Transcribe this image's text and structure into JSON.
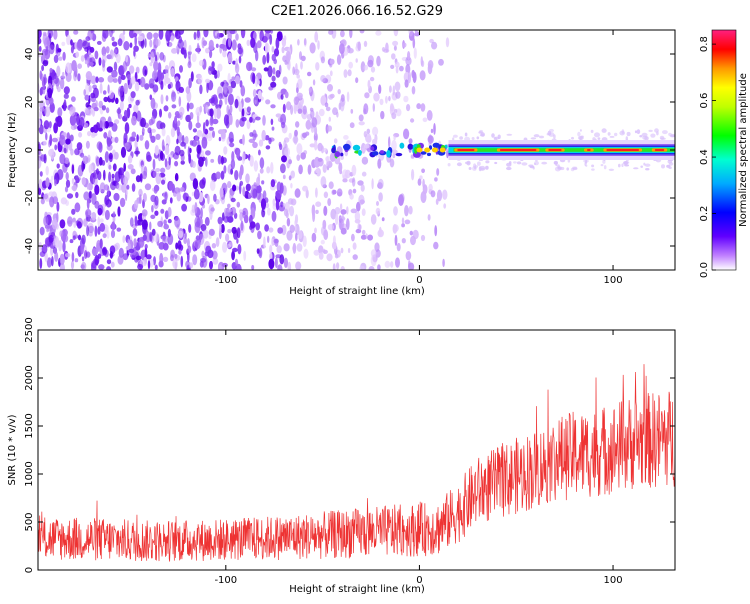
{
  "figure_title": "C2E1.2026.066.16.52.G29",
  "chart_data": [
    {
      "type": "heatmap",
      "title": "C2E1.2026.066.16.52.G29",
      "xlabel": "Height of straight line (km)",
      "ylabel": "Frequency (Hz)",
      "xlim": [
        -197,
        132
      ],
      "ylim": [
        -50,
        50
      ],
      "xticks": [
        -100,
        0,
        100
      ],
      "yticks": [
        -40,
        -20,
        0,
        20,
        40
      ],
      "colorbar": {
        "label": "Normalized spectral amplitude",
        "range": [
          0,
          0.85
        ],
        "ticks": [
          "0.0",
          "0.2",
          "0.4",
          "0.6",
          "0.8"
        ],
        "colormap": "rainbow (violet-blue-cyan-green-yellow-orange-red-magenta)"
      },
      "features": {
        "noise_region_x": [
          -197,
          15
        ],
        "signal_line_frequency_hz": 0,
        "signal_line_x": [
          -45,
          132
        ],
        "peak_amplitude": 0.8
      }
    },
    {
      "type": "line",
      "xlabel": "Height of straight line (km)",
      "ylabel": "SNR (10 * v/v)",
      "xlim": [
        -197,
        132
      ],
      "ylim": [
        0,
        2500
      ],
      "xticks": [
        -100,
        0,
        100
      ],
      "yticks": [
        0,
        500,
        1000,
        1500,
        2000,
        2500
      ],
      "color": "#ee3333",
      "series": [
        {
          "name": "SNR",
          "x": [
            -197,
            -170,
            -140,
            -110,
            -80,
            -50,
            -20,
            0,
            10,
            20,
            30,
            40,
            50,
            60,
            70,
            80,
            90,
            100,
            110,
            120,
            132
          ],
          "center": [
            330,
            320,
            300,
            310,
            330,
            360,
            400,
            420,
            440,
            600,
            820,
            900,
            980,
            1050,
            1150,
            1200,
            1220,
            1270,
            1330,
            1350,
            1380
          ],
          "spread": [
            230,
            230,
            220,
            220,
            230,
            250,
            270,
            280,
            290,
            320,
            360,
            380,
            400,
            420,
            440,
            460,
            470,
            480,
            500,
            510,
            520
          ]
        }
      ]
    }
  ]
}
